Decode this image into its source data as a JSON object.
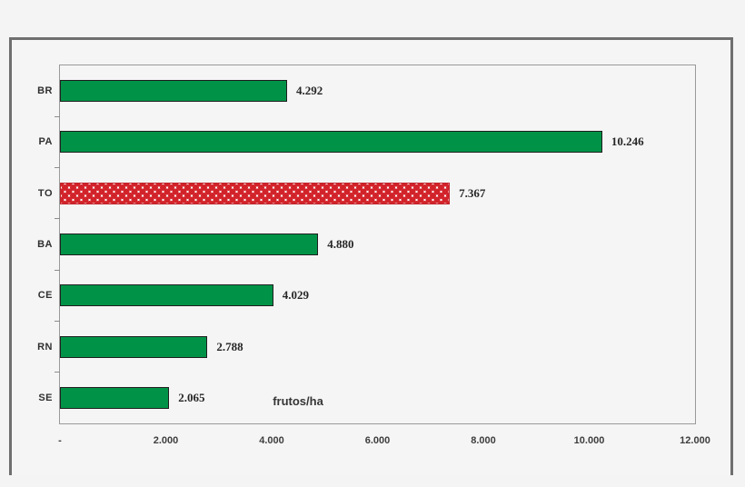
{
  "chart_data": {
    "type": "bar",
    "orientation": "horizontal",
    "title": "",
    "xlabel": "frutos/ha",
    "ylabel": "",
    "categories": [
      "BR",
      "PA",
      "TO",
      "BA",
      "CE",
      "RN",
      "SE"
    ],
    "values": [
      4292,
      10246,
      7367,
      4880,
      4029,
      2788,
      2065
    ],
    "value_labels": [
      "4.292",
      "10.246",
      "7.367",
      "4.880",
      "4.029",
      "2.788",
      "2.065"
    ],
    "highlighted_category": "TO",
    "xlim": [
      0,
      12000
    ],
    "x_tick_values": [
      0,
      2000,
      4000,
      6000,
      8000,
      10000,
      12000
    ],
    "x_tick_labels": [
      "-",
      "2.000",
      "4.000",
      "6.000",
      "8.000",
      "10.000",
      "12.000"
    ],
    "grid": false,
    "legend": false,
    "colors": {
      "bar_fill": "#009348",
      "bar_border": "#1e1e1e",
      "highlight_fill": "#d2232a",
      "highlight_pattern": "white-diamond-checker",
      "axis": "#9a9a9a",
      "frame_border": "#6f6f6f",
      "background": "#f4f4f5",
      "text": "#2e2e2e"
    }
  }
}
